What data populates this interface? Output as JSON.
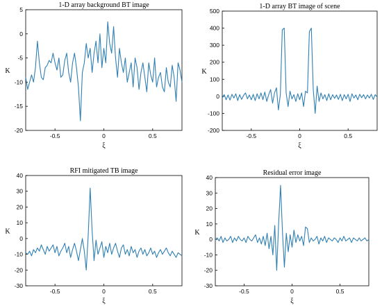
{
  "chart_data": [
    {
      "type": "line",
      "title": "1-D array background BT image",
      "xlabel": "ξ",
      "ylabel": "K",
      "xlim": [
        -0.8,
        0.8
      ],
      "ylim": [
        -20,
        5
      ],
      "xticks": [
        -0.5,
        0,
        0.5
      ],
      "xtick_labels": [
        "-0.5",
        "0",
        "0.5"
      ],
      "yticks": [
        -20,
        -15,
        -10,
        -5,
        0,
        5
      ],
      "ytick_labels": [
        "-20",
        "-15",
        "-10",
        "-5",
        "0",
        "5"
      ],
      "grid": false,
      "color": "#2f7fb3",
      "x": [
        -0.8,
        -0.78,
        -0.76,
        -0.74,
        -0.72,
        -0.7,
        -0.68,
        -0.66,
        -0.64,
        -0.62,
        -0.6,
        -0.58,
        -0.56,
        -0.54,
        -0.52,
        -0.5,
        -0.48,
        -0.46,
        -0.44,
        -0.42,
        -0.4,
        -0.38,
        -0.36,
        -0.34,
        -0.32,
        -0.3,
        -0.28,
        -0.26,
        -0.24,
        -0.22,
        -0.2,
        -0.18,
        -0.16,
        -0.14,
        -0.12,
        -0.1,
        -0.08,
        -0.06,
        -0.04,
        -0.02,
        0,
        0.02,
        0.04,
        0.06,
        0.08,
        0.1,
        0.12,
        0.14,
        0.16,
        0.18,
        0.2,
        0.22,
        0.24,
        0.26,
        0.28,
        0.3,
        0.32,
        0.34,
        0.36,
        0.38,
        0.4,
        0.42,
        0.44,
        0.46,
        0.48,
        0.5,
        0.52,
        0.54,
        0.56,
        0.58,
        0.6,
        0.62,
        0.64,
        0.66,
        0.68,
        0.7,
        0.72,
        0.74,
        0.76,
        0.78,
        0.8
      ],
      "y": [
        -9,
        -11.5,
        -10,
        -8.5,
        -10,
        -7,
        -1.5,
        -6,
        -9,
        -9.5,
        -7,
        -6.5,
        -5.5,
        -6,
        -4,
        -6,
        -7.5,
        -5,
        -9,
        -8.5,
        -5.5,
        -4,
        -8,
        -10,
        -6,
        -4,
        -7,
        -11,
        -18,
        -8,
        -6,
        -2,
        -5,
        -3,
        -8,
        -4,
        -1.5,
        -6,
        0,
        -7,
        -3,
        -6,
        2.5,
        -2,
        -4,
        1.5,
        -5,
        -9,
        -3,
        -6,
        -8,
        -5,
        -10,
        -8,
        -6,
        -11,
        -5,
        -7,
        -11.5,
        -8,
        -6,
        -9,
        -12,
        -6,
        -8.5,
        -10,
        -5,
        -11,
        -9,
        -8,
        -11,
        -12,
        -7,
        -10,
        -11,
        -6.5,
        -9,
        -14,
        -6,
        -7.5,
        -10
      ]
    },
    {
      "type": "line",
      "title": "1-D array BT image of scene",
      "xlabel": "ξ",
      "ylabel": "K",
      "xlim": [
        -0.8,
        0.8
      ],
      "ylim": [
        -200,
        500
      ],
      "xticks": [
        -0.5,
        0,
        0.5
      ],
      "xtick_labels": [
        "-0.5",
        "0",
        "0.5"
      ],
      "yticks": [
        -200,
        -100,
        0,
        100,
        200,
        300,
        400,
        500
      ],
      "ytick_labels": [
        "-200",
        "-100",
        "0",
        "100",
        "200",
        "300",
        "400",
        "500"
      ],
      "grid": false,
      "color": "#2f7fb3",
      "x": [
        -0.8,
        -0.78,
        -0.76,
        -0.74,
        -0.72,
        -0.7,
        -0.68,
        -0.66,
        -0.64,
        -0.62,
        -0.6,
        -0.58,
        -0.56,
        -0.54,
        -0.52,
        -0.5,
        -0.48,
        -0.46,
        -0.44,
        -0.42,
        -0.4,
        -0.38,
        -0.36,
        -0.34,
        -0.32,
        -0.3,
        -0.28,
        -0.26,
        -0.24,
        -0.22,
        -0.2,
        -0.18,
        -0.16,
        -0.14,
        -0.12,
        -0.1,
        -0.08,
        -0.06,
        -0.04,
        -0.02,
        0,
        0.02,
        0.04,
        0.06,
        0.08,
        0.1,
        0.12,
        0.14,
        0.16,
        0.18,
        0.2,
        0.22,
        0.24,
        0.26,
        0.28,
        0.3,
        0.32,
        0.34,
        0.36,
        0.38,
        0.4,
        0.42,
        0.44,
        0.46,
        0.48,
        0.5,
        0.52,
        0.54,
        0.56,
        0.58,
        0.6,
        0.62,
        0.64,
        0.66,
        0.68,
        0.7,
        0.72,
        0.74,
        0.76,
        0.78,
        0.8
      ],
      "y": [
        -10,
        10,
        -20,
        8,
        -22,
        12,
        -10,
        15,
        -25,
        10,
        -18,
        5,
        20,
        -15,
        8,
        -20,
        12,
        -25,
        15,
        -15,
        20,
        -20,
        25,
        -30,
        10,
        40,
        -40,
        20,
        50,
        -80,
        10,
        390,
        400,
        20,
        -60,
        30,
        -15,
        10,
        -30,
        15,
        -20,
        20,
        -60,
        30,
        20,
        380,
        400,
        40,
        -100,
        60,
        -30,
        20,
        -15,
        10,
        -25,
        15,
        -20,
        10,
        -12,
        8,
        -18,
        12,
        -25,
        10,
        -15,
        12,
        -30,
        15,
        -10,
        8,
        -20,
        12,
        -8,
        10,
        -15,
        8,
        -10,
        12,
        -18,
        10,
        -5
      ]
    },
    {
      "type": "line",
      "title": "RFI mitigated TB image",
      "xlabel": "ξ",
      "ylabel": "K",
      "xlim": [
        -0.8,
        0.8
      ],
      "ylim": [
        -30,
        40
      ],
      "xticks": [
        -0.5,
        0,
        0.5
      ],
      "xtick_labels": [
        "-0.5",
        "0",
        "0.5"
      ],
      "yticks": [
        -30,
        -20,
        -10,
        0,
        10,
        20,
        30,
        40
      ],
      "ytick_labels": [
        "-30",
        "-20",
        "-10",
        "0",
        "10",
        "20",
        "30",
        "40"
      ],
      "grid": false,
      "color": "#2f7fb3",
      "x": [
        -0.8,
        -0.78,
        -0.76,
        -0.74,
        -0.72,
        -0.7,
        -0.68,
        -0.66,
        -0.64,
        -0.62,
        -0.6,
        -0.58,
        -0.56,
        -0.54,
        -0.52,
        -0.5,
        -0.48,
        -0.46,
        -0.44,
        -0.42,
        -0.4,
        -0.38,
        -0.36,
        -0.34,
        -0.32,
        -0.3,
        -0.28,
        -0.26,
        -0.24,
        -0.22,
        -0.2,
        -0.18,
        -0.16,
        -0.14,
        -0.12,
        -0.1,
        -0.08,
        -0.06,
        -0.04,
        -0.02,
        0,
        0.02,
        0.04,
        0.06,
        0.08,
        0.1,
        0.12,
        0.14,
        0.16,
        0.18,
        0.2,
        0.22,
        0.24,
        0.26,
        0.28,
        0.3,
        0.32,
        0.34,
        0.36,
        0.38,
        0.4,
        0.42,
        0.44,
        0.46,
        0.48,
        0.5,
        0.52,
        0.54,
        0.56,
        0.58,
        0.6,
        0.62,
        0.64,
        0.66,
        0.68,
        0.7,
        0.72,
        0.74,
        0.76,
        0.78,
        0.8
      ],
      "y": [
        -9,
        -10,
        -8,
        -11,
        -7,
        -9,
        -6,
        -8,
        -4,
        -7,
        -10,
        -5,
        -8,
        -6,
        -4,
        -9,
        -5,
        -11,
        -8,
        -6,
        -3,
        -9,
        -5,
        -12,
        -7,
        -3,
        -8,
        -14,
        -7,
        0,
        -8,
        -20,
        2,
        32,
        5,
        -14,
        -1,
        -10,
        -6,
        -2,
        -12,
        -5,
        -9,
        -3,
        -10,
        -6,
        -3,
        -8,
        -12,
        -6,
        -4,
        -10,
        -7,
        -11,
        -5,
        -9,
        -7,
        -12,
        -8,
        -6,
        -10,
        -7,
        -11,
        -9,
        -6,
        -10,
        -8,
        -12,
        -9,
        -7,
        -10,
        -8,
        -6,
        -9,
        -11,
        -8,
        -10,
        -12,
        -9,
        -10,
        -11
      ]
    },
    {
      "type": "line",
      "title": "Residual error image",
      "xlabel": "ξ",
      "ylabel": "K",
      "xlim": [
        -0.8,
        0.8
      ],
      "ylim": [
        -30,
        40
      ],
      "xticks": [
        -0.5,
        0,
        0.5
      ],
      "xtick_labels": [
        "-0.5",
        "0",
        "0.5"
      ],
      "yticks": [
        -30,
        -20,
        -10,
        0,
        10,
        20,
        30,
        40
      ],
      "ytick_labels": [
        "-30",
        "-20",
        "-10",
        "0",
        "10",
        "20",
        "30",
        "40"
      ],
      "grid": false,
      "color": "#2f7fb3",
      "x": [
        -0.8,
        -0.78,
        -0.76,
        -0.74,
        -0.72,
        -0.7,
        -0.68,
        -0.66,
        -0.64,
        -0.62,
        -0.6,
        -0.58,
        -0.56,
        -0.54,
        -0.52,
        -0.5,
        -0.48,
        -0.46,
        -0.44,
        -0.42,
        -0.4,
        -0.38,
        -0.36,
        -0.34,
        -0.32,
        -0.3,
        -0.28,
        -0.26,
        -0.24,
        -0.22,
        -0.2,
        -0.18,
        -0.16,
        -0.14,
        -0.12,
        -0.1,
        -0.08,
        -0.06,
        -0.04,
        -0.02,
        0,
        0.02,
        0.04,
        0.06,
        0.08,
        0.1,
        0.12,
        0.14,
        0.16,
        0.18,
        0.2,
        0.22,
        0.24,
        0.26,
        0.28,
        0.3,
        0.32,
        0.34,
        0.36,
        0.38,
        0.4,
        0.42,
        0.44,
        0.46,
        0.48,
        0.5,
        0.52,
        0.54,
        0.56,
        0.58,
        0.6,
        0.62,
        0.64,
        0.66,
        0.68,
        0.7,
        0.72,
        0.74,
        0.76,
        0.78,
        0.8
      ],
      "y": [
        0,
        1,
        -1,
        2,
        -2,
        1,
        -1,
        0,
        2,
        -2,
        1,
        -1,
        2,
        0,
        -1,
        1,
        -2,
        2,
        0,
        -1,
        1,
        3,
        -2,
        1,
        -3,
        2,
        -4,
        4,
        -6,
        2,
        -10,
        9,
        -20,
        10,
        35,
        5,
        -18,
        4,
        -8,
        3,
        -5,
        6,
        -2,
        3,
        -1,
        2,
        -4,
        8,
        7,
        -2,
        1,
        -1,
        0,
        2,
        -3,
        1,
        -1,
        2,
        -2,
        1,
        0,
        -1,
        1,
        0,
        -2,
        1,
        -1,
        2,
        -1,
        0,
        1,
        -2,
        1,
        0,
        -1,
        1,
        -1,
        0,
        1,
        -1,
        0
      ]
    }
  ]
}
